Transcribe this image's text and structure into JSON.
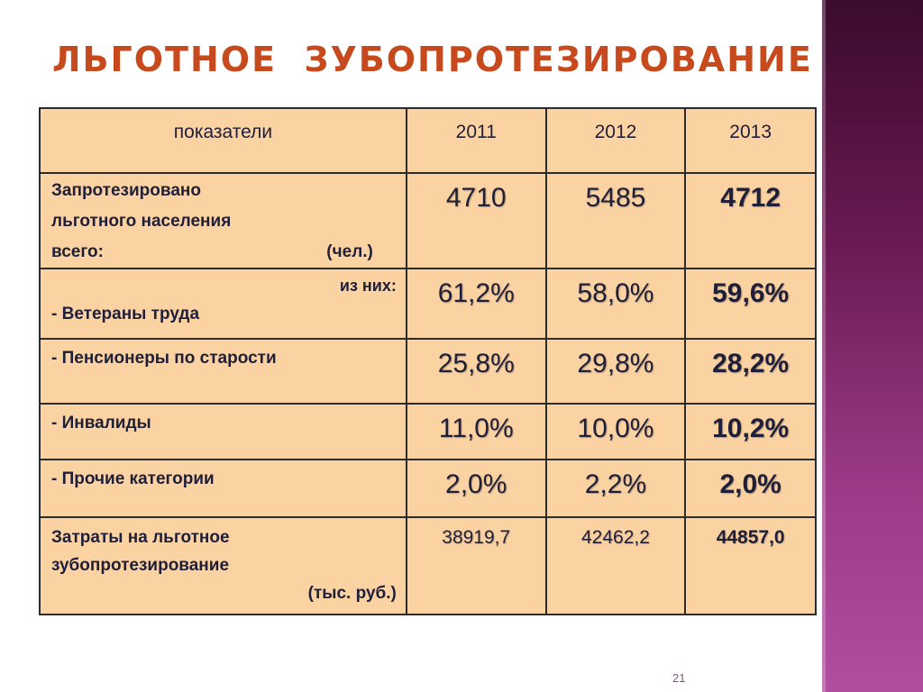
{
  "title": "ЛЬГОТНОЕ  ЗУБОПРОТЕЗИРОВАНИЕ",
  "header": {
    "label": "показатели",
    "years": [
      "2011",
      "2012",
      "2013"
    ]
  },
  "rows": {
    "total": {
      "line1": "Запротезировано",
      "line2": "льготного населения",
      "line3_left": "всего:",
      "line3_right": "(чел.)",
      "values": [
        "4710",
        "5485",
        "4712"
      ]
    },
    "veterans": {
      "note": "из них:",
      "label": "- Ветераны труда",
      "values": [
        "61,2%",
        "58,0%",
        "59,6%"
      ]
    },
    "pensioners": {
      "label": "- Пенсионеры по старости",
      "values": [
        "25,8%",
        "29,8%",
        "28,2%"
      ]
    },
    "disabled": {
      "label": "- Инвалиды",
      "values": [
        "11,0%",
        "10,0%",
        "10,2%"
      ]
    },
    "other": {
      "label": "- Прочие категории",
      "values": [
        "2,0%",
        "2,2%",
        "2,0%"
      ]
    },
    "costs": {
      "line1": "Затраты на льготное",
      "line2": "зубопротезирование",
      "line3": "(тыс. руб.)",
      "values": [
        "38919,7",
        "42462,2",
        "44857,0"
      ]
    }
  },
  "page_number": "21",
  "colors": {
    "title": "#c74a1e",
    "table_fill": "#fbd2a2",
    "side_band": "#6a1a52"
  }
}
